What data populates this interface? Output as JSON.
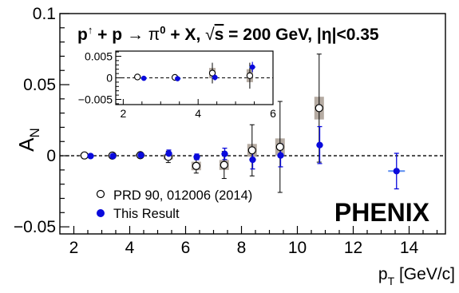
{
  "chart_data": {
    "type": "scatter",
    "title": "p↑ + p → π⁰ + X,  √s = 200 GeV, |η|<0.35",
    "title_parts": {
      "reaction_a": "p",
      "reaction_sup": "↑",
      "reaction_b": " + p ",
      "arrow": "→",
      "reaction_c": " π",
      "reaction_sup2": "0",
      "reaction_d": " + X,  ",
      "sqrt": "√",
      "s_label": "s",
      "energy": " = 200 GeV, |η|<0.35"
    },
    "xlabel": "p",
    "xlabel_sub": "T",
    "xlabel_unit": " [GeV/c]",
    "ylabel": "A",
    "ylabel_sub": "N",
    "xlim": [
      1.5,
      15.3
    ],
    "ylim": [
      -0.055,
      0.1
    ],
    "x_ticks": [
      2,
      4,
      6,
      8,
      10,
      12,
      14
    ],
    "y_ticks": [
      -0.05,
      0,
      0.05,
      0.1
    ],
    "x_tick_labels": [
      "2",
      "4",
      "6",
      "8",
      "10",
      "12",
      "14"
    ],
    "y_tick_labels": [
      "−0.05",
      "0",
      "0.05",
      "0.1"
    ],
    "watermark": "PHENIX",
    "legend": {
      "placement": "bottom-left",
      "entries": [
        "PRD 90, 012006 (2014)",
        "This Result"
      ]
    },
    "series": [
      {
        "name": "PRD 90, 012006 (2014)",
        "marker": "open-circle",
        "color": "#000000",
        "x": [
          2.38,
          3.38,
          4.38,
          5.38,
          6.38,
          7.38,
          8.38,
          9.38,
          10.78
        ],
        "y": [
          0.0002,
          0.0001,
          0.0004,
          -0.0008,
          -0.0072,
          -0.0065,
          0.0038,
          0.0062,
          0.0335
        ],
        "err": [
          0.0009,
          0.0009,
          0.0015,
          0.004,
          0.005,
          0.0095,
          0.018,
          0.032,
          0.038
        ],
        "sys": [
          0.0005,
          0.0005,
          0.0008,
          0.0018,
          0.003,
          0.0035,
          0.0045,
          0.006,
          0.008
        ]
      },
      {
        "name": "This Result",
        "marker": "filled-circle",
        "color": "#0a0adc",
        "x": [
          2.6,
          3.4,
          4.4,
          5.4,
          6.4,
          7.4,
          8.4,
          9.4,
          10.8,
          13.55
        ],
        "y": [
          -0.0002,
          -0.0002,
          0.0004,
          0.0015,
          -0.0008,
          0.0013,
          -0.0028,
          0.0002,
          0.0075,
          -0.0108
        ],
        "err": [
          0.0006,
          0.0006,
          0.001,
          0.0025,
          0.002,
          0.004,
          0.0065,
          0.008,
          0.013,
          0.0125
        ],
        "xerr": [
          0.12,
          0.12,
          0.12,
          0.12,
          0.12,
          0.12,
          0.12,
          0.12,
          0.12,
          0.3
        ]
      }
    ],
    "inset": {
      "xlim": [
        1.8,
        6.0
      ],
      "ylim": [
        -0.0062,
        0.0062
      ],
      "x_ticks": [
        2,
        4,
        6
      ],
      "y_ticks": [
        -0.005,
        0,
        0.005
      ],
      "x_tick_labels": [
        "2",
        "4",
        "6"
      ],
      "y_tick_labels": [
        "−0.005",
        "0",
        "0.005"
      ],
      "series": [
        {
          "name": "PRD 90, 012006 (2014)",
          "x": [
            2.38,
            3.38,
            4.38,
            5.38
          ],
          "y": [
            0.0002,
            0.0001,
            0.0011,
            0.0005
          ],
          "err": [
            0.0004,
            0.0005,
            0.0024,
            0.003
          ]
        },
        {
          "name": "This Result",
          "x": [
            2.55,
            3.45,
            4.45,
            5.45
          ],
          "y": [
            -0.0001,
            -0.0002,
            0.0001,
            0.0025
          ],
          "err": [
            0.0003,
            0.0004,
            0.0007,
            0.0012
          ]
        }
      ]
    }
  }
}
